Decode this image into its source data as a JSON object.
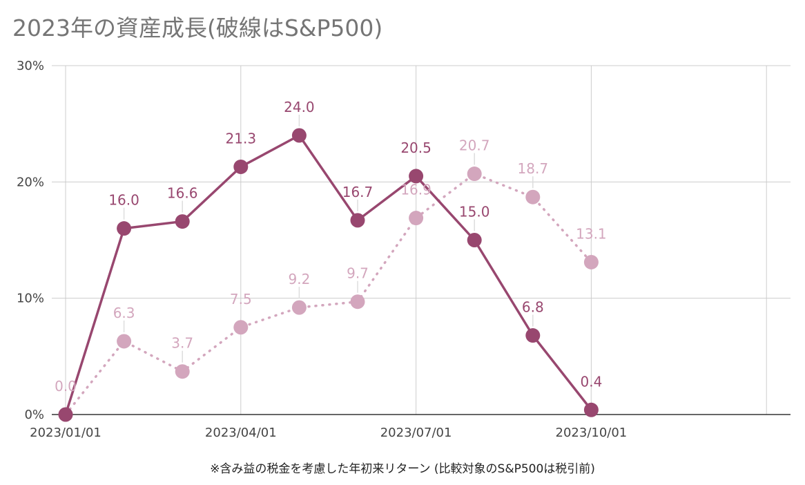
{
  "title": "2023年の資産成長(破線はS&P500)",
  "footnote": "※含み益の税金を考慮した年初来リターン (比較対象のS&P500は税引前)",
  "chart_data": {
    "type": "line",
    "x": [
      "2023/01/01",
      "2023/02/01",
      "2023/03/01",
      "2023/04/01",
      "2023/05/01",
      "2023/06/01",
      "2023/07/01",
      "2023/08/01",
      "2023/09/01",
      "2023/10/01"
    ],
    "x_tick_labels": [
      "2023/01/01",
      "2023/04/01",
      "2023/07/01",
      "2023/10/01"
    ],
    "y_tick_labels": [
      "0%",
      "10%",
      "20%",
      "30%"
    ],
    "ylim": [
      0,
      30
    ],
    "grid": true,
    "series": [
      {
        "style": "solid",
        "color": "#98476f",
        "values": [
          0.0,
          16.0,
          16.6,
          21.3,
          24.0,
          16.7,
          20.5,
          15.0,
          6.8,
          0.4
        ],
        "labels": [
          "",
          "16.0",
          "16.6",
          "21.3",
          "24.0",
          "16.7",
          "20.5",
          "15.0",
          "6.8",
          "0.4"
        ]
      },
      {
        "style": "dotted",
        "color": "#d3a6bd",
        "values": [
          0.0,
          6.3,
          3.7,
          7.5,
          9.2,
          9.7,
          16.9,
          20.7,
          18.7,
          13.1
        ],
        "labels": [
          "0.0",
          "6.3",
          "3.7",
          "7.5",
          "9.2",
          "9.7",
          "16.9",
          "20.7",
          "18.7",
          "13.1"
        ]
      }
    ]
  }
}
